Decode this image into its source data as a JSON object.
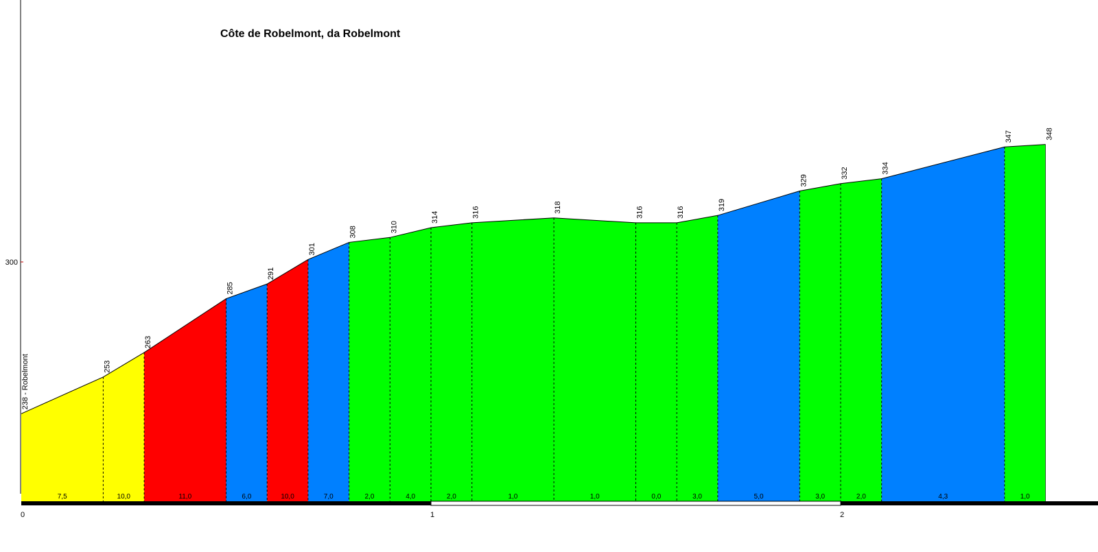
{
  "chart_data": {
    "type": "area",
    "title": "Côte de Robelmont, da Robelmont",
    "xlabel": "",
    "ylabel": "",
    "x_ticks": [
      "0",
      "1",
      "2"
    ],
    "y_ticks": [
      "300"
    ],
    "xlim": [
      0,
      2.62
    ],
    "ylim": [
      226.2,
      428.8
    ],
    "grid": false,
    "legend": "none",
    "start_label": "238 - Robelmont",
    "points": [
      {
        "x": 0.0,
        "y": 238,
        "label": "238 - Robelmont"
      },
      {
        "x": 0.2,
        "y": 253,
        "label": "253"
      },
      {
        "x": 0.3,
        "y": 263,
        "label": "263"
      },
      {
        "x": 0.5,
        "y": 285,
        "label": "285"
      },
      {
        "x": 0.6,
        "y": 291,
        "label": "291"
      },
      {
        "x": 0.7,
        "y": 301,
        "label": "301"
      },
      {
        "x": 0.8,
        "y": 308,
        "label": "308"
      },
      {
        "x": 0.9,
        "y": 310,
        "label": "310"
      },
      {
        "x": 1.0,
        "y": 314,
        "label": "314"
      },
      {
        "x": 1.1,
        "y": 316,
        "label": "316"
      },
      {
        "x": 1.3,
        "y": 318,
        "label": "318"
      },
      {
        "x": 1.5,
        "y": 316,
        "label": "316"
      },
      {
        "x": 1.6,
        "y": 316,
        "label": "316"
      },
      {
        "x": 1.7,
        "y": 319,
        "label": "319"
      },
      {
        "x": 1.9,
        "y": 329,
        "label": "329"
      },
      {
        "x": 2.0,
        "y": 332,
        "label": "332"
      },
      {
        "x": 2.1,
        "y": 334,
        "label": "334"
      },
      {
        "x": 2.4,
        "y": 347,
        "label": "347"
      },
      {
        "x": 2.5,
        "y": 348,
        "label": "348"
      }
    ],
    "segments": [
      {
        "gradient": "7,5",
        "color": "#ffff00"
      },
      {
        "gradient": "10,0",
        "color": "#ffff00"
      },
      {
        "gradient": "11,0",
        "color": "#ff0000"
      },
      {
        "gradient": "6,0",
        "color": "#0080ff"
      },
      {
        "gradient": "10,0",
        "color": "#ff0000"
      },
      {
        "gradient": "7,0",
        "color": "#0080ff"
      },
      {
        "gradient": "2,0",
        "color": "#00ff00"
      },
      {
        "gradient": "4,0",
        "color": "#00ff00"
      },
      {
        "gradient": "2,0",
        "color": "#00ff00"
      },
      {
        "gradient": "1,0",
        "color": "#00ff00"
      },
      {
        "gradient": "1,0",
        "color": "#00ff00"
      },
      {
        "gradient": "0,0",
        "color": "#00ff00"
      },
      {
        "gradient": "3,0",
        "color": "#00ff00"
      },
      {
        "gradient": "5,0",
        "color": "#0080ff"
      },
      {
        "gradient": "3,0",
        "color": "#00ff00"
      },
      {
        "gradient": "2,0",
        "color": "#00ff00"
      },
      {
        "gradient": "4,3",
        "color": "#0080ff"
      },
      {
        "gradient": "1,0",
        "color": "#00ff00"
      }
    ]
  },
  "colors": {
    "easy": "#00ff00",
    "moderate": "#0080ff",
    "medium": "#ffff00",
    "hard": "#ff0000",
    "axis_red_tick": "#c00000"
  }
}
